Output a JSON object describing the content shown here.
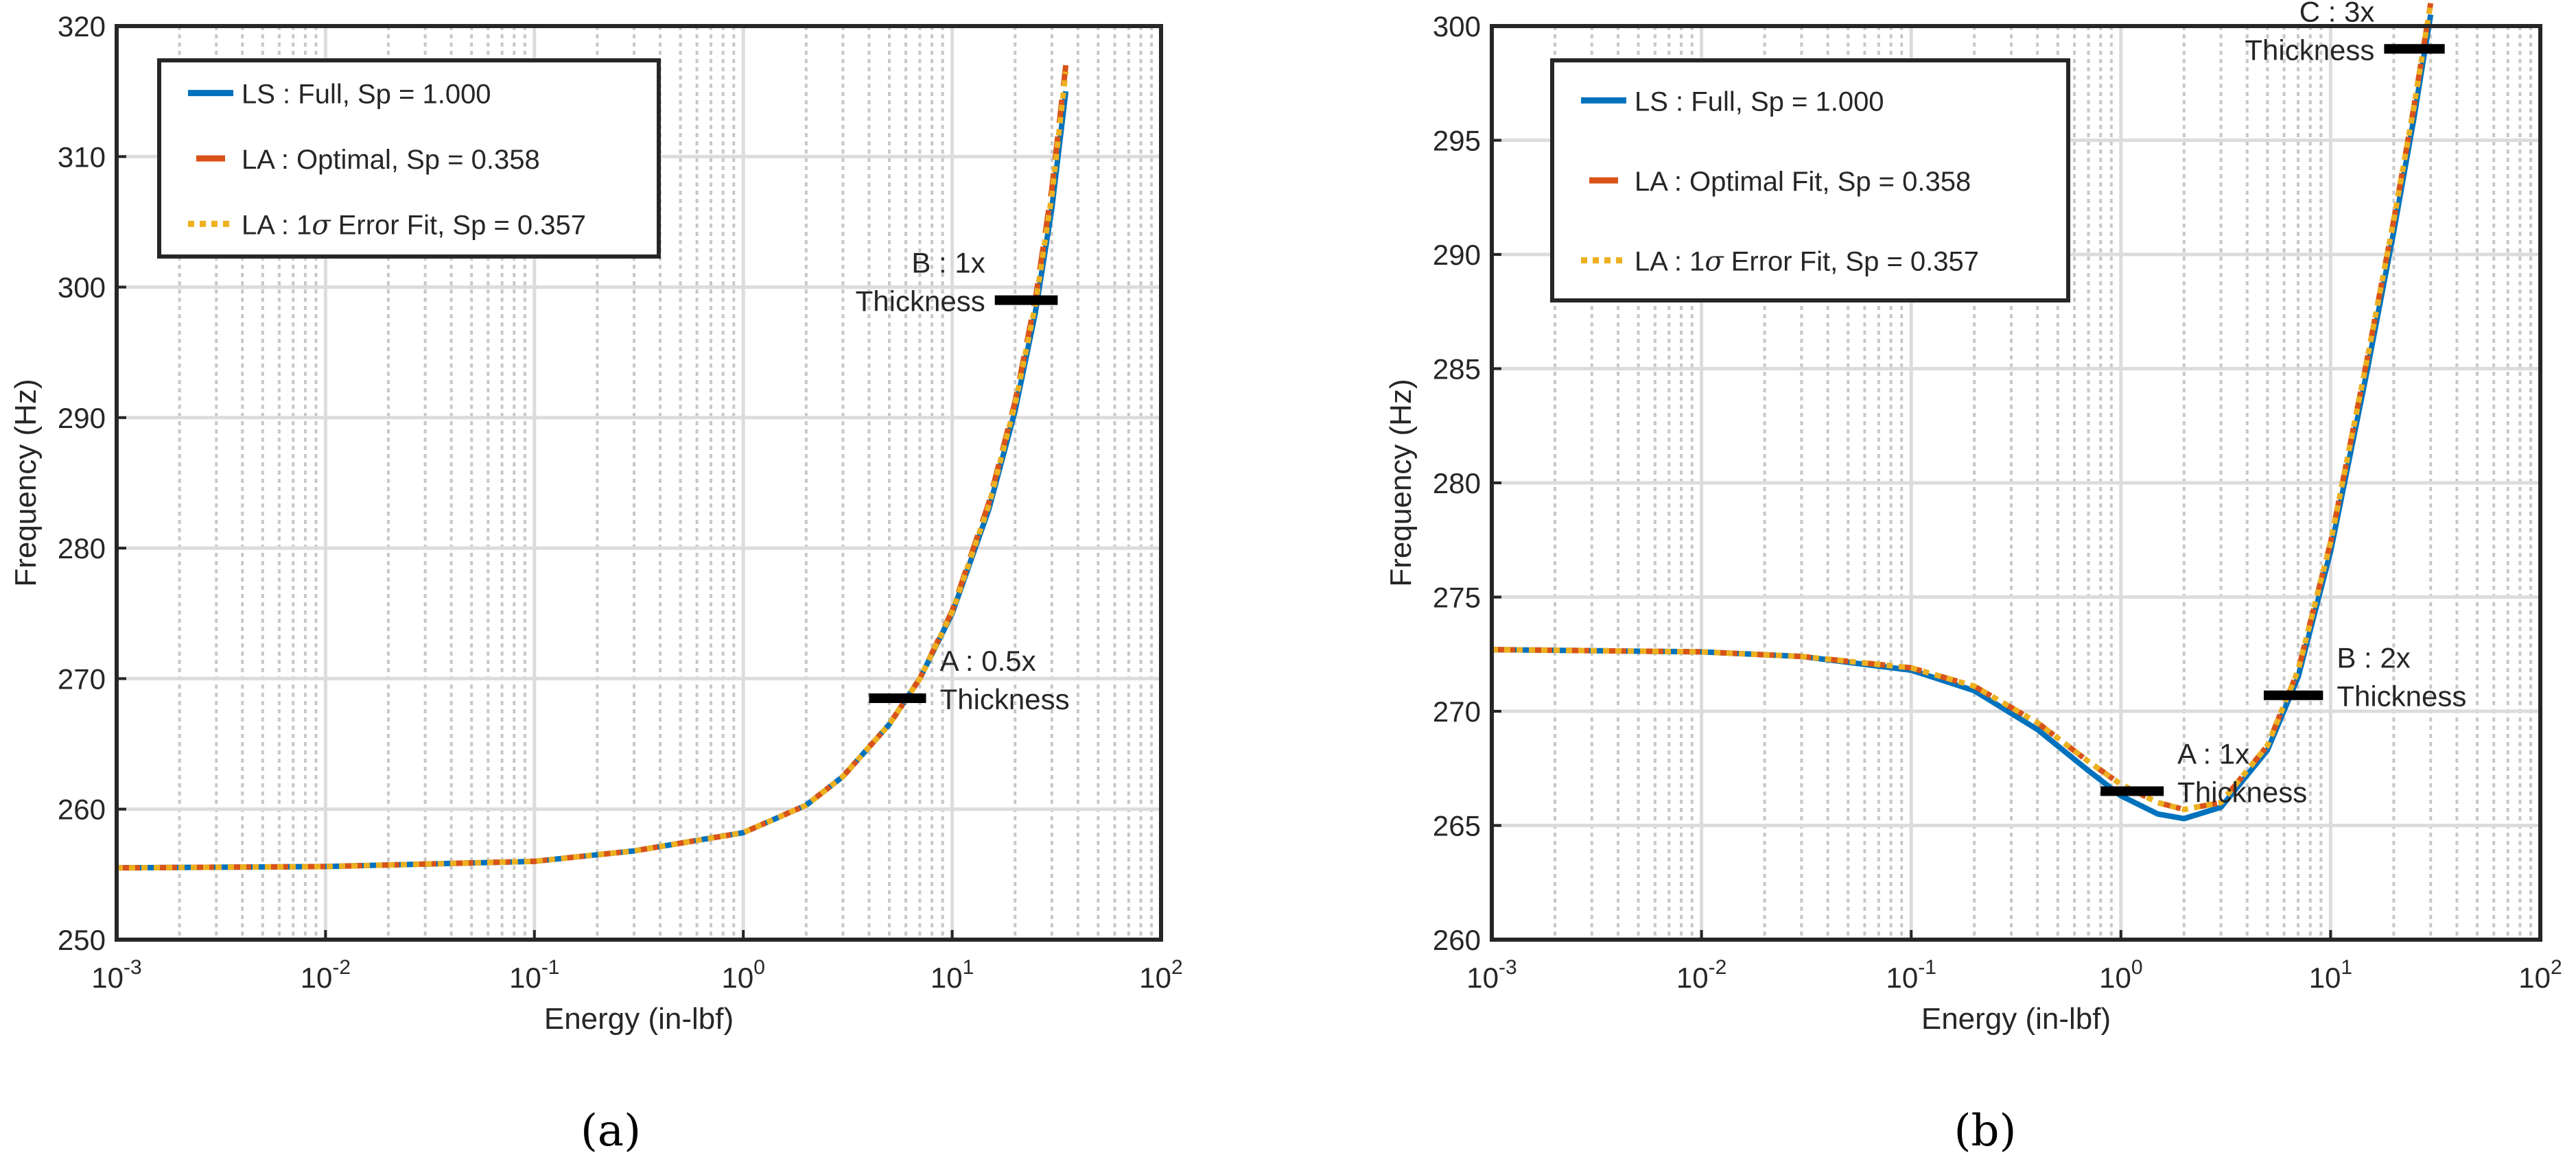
{
  "panels": [
    {
      "caption": "(a)",
      "chart_data": {
        "type": "line",
        "xscale": "log",
        "xlim": [
          0.001,
          100
        ],
        "ylim": [
          250,
          320
        ],
        "xlabel": "Energy (in-lbf)",
        "ylabel": "Frequency (Hz)",
        "grid": true,
        "legend_position": "top-left",
        "x_tick_labels": [
          "10-3",
          "10-2",
          "10-1",
          "100",
          "101",
          "102"
        ],
        "y_ticks": [
          250,
          260,
          270,
          280,
          290,
          300,
          310,
          320
        ],
        "series": [
          {
            "name": "LS : Full, Sp = 1.000",
            "color": "#0072BD",
            "style": "solid",
            "x": [
              0.001,
              0.01,
              0.1,
              0.3,
              1,
              2,
              3,
              5,
              7,
              10,
              15,
              20,
              25,
              30,
              35
            ],
            "y": [
              255.5,
              255.6,
              256.0,
              256.8,
              258.2,
              260.3,
              262.5,
              266.5,
              270.0,
              275.0,
              283.0,
              290.5,
              298.0,
              306.0,
              315.0
            ]
          },
          {
            "name": "LA : Optimal, Sp = 0.358",
            "color": "#D95319",
            "style": "dashed",
            "x": [
              0.001,
              0.01,
              0.1,
              0.3,
              1,
              2,
              3,
              5,
              7,
              10,
              15,
              20,
              25,
              30,
              35
            ],
            "y": [
              255.5,
              255.6,
              256.0,
              256.8,
              258.2,
              260.3,
              262.5,
              266.5,
              270.0,
              275.2,
              283.5,
              291.2,
              299.0,
              307.5,
              317.0
            ]
          },
          {
            "name": "LA : 1σ Error Fit, Sp = 0.357",
            "color": "#EDB120",
            "style": "dotted",
            "x": [
              0.001,
              0.01,
              0.1,
              0.3,
              1,
              2,
              3,
              5,
              7,
              10,
              15,
              20,
              25,
              30,
              35
            ],
            "y": [
              255.5,
              255.6,
              256.0,
              256.8,
              258.2,
              260.3,
              262.5,
              266.5,
              270.0,
              275.1,
              283.3,
              291.0,
              298.6,
              307.0,
              316.5
            ]
          }
        ],
        "annotations": [
          {
            "line1": "A : 0.5x",
            "line2": "Thickness",
            "x_from": 4,
            "x_to": 7.5,
            "y": 268.5
          },
          {
            "line1": "B : 1x",
            "line2": "Thickness",
            "x_from": 16,
            "x_to": 32,
            "y": 299.0
          }
        ]
      }
    },
    {
      "caption": "(b)",
      "chart_data": {
        "type": "line",
        "xscale": "log",
        "xlim": [
          0.001,
          100
        ],
        "ylim": [
          260,
          300
        ],
        "xlabel": "Energy (in-lbf)",
        "ylabel": "Frequency (Hz)",
        "grid": true,
        "legend_position": "top-left",
        "x_tick_labels": [
          "10-3",
          "10-2",
          "10-1",
          "100",
          "101",
          "102"
        ],
        "y_ticks": [
          260,
          265,
          270,
          275,
          280,
          285,
          290,
          295,
          300
        ],
        "series": [
          {
            "name": "LS : Full, Sp = 1.000",
            "color": "#0072BD",
            "style": "solid",
            "x": [
              0.001,
              0.01,
              0.03,
              0.1,
              0.2,
              0.4,
              0.7,
              1,
              1.5,
              2,
              3,
              5,
              7,
              10,
              15,
              20,
              25,
              30
            ],
            "y": [
              272.7,
              272.6,
              272.4,
              271.8,
              270.9,
              269.2,
              267.4,
              266.3,
              265.5,
              265.3,
              265.8,
              268.3,
              271.5,
              277.0,
              285.0,
              291.0,
              296.0,
              300.5
            ]
          },
          {
            "name": "LA : Optimal Fit,  Sp = 0.358",
            "color": "#D95319",
            "style": "dashed",
            "x": [
              0.001,
              0.01,
              0.03,
              0.1,
              0.2,
              0.4,
              0.7,
              1,
              1.5,
              2,
              3,
              5,
              7,
              10,
              15,
              20,
              25,
              30
            ],
            "y": [
              272.7,
              272.6,
              272.4,
              271.9,
              271.1,
              269.5,
              267.8,
              266.8,
              266.0,
              265.7,
              266.0,
              268.5,
              271.8,
              277.4,
              285.5,
              291.5,
              296.5,
              301.0
            ]
          },
          {
            "name": "LA : 1σ Error Fit, Sp = 0.357",
            "color": "#EDB120",
            "style": "dotted",
            "x": [
              0.001,
              0.01,
              0.03,
              0.1,
              0.2,
              0.4,
              0.7,
              1,
              1.5,
              2,
              3,
              5,
              7,
              10,
              15,
              20,
              25,
              30
            ],
            "y": [
              272.7,
              272.6,
              272.4,
              271.9,
              271.1,
              269.5,
              267.8,
              266.8,
              266.0,
              265.7,
              266.0,
              268.5,
              271.8,
              277.4,
              285.5,
              291.5,
              296.5,
              301.0
            ]
          }
        ],
        "annotations": [
          {
            "line1": "A : 1x",
            "line2": "Thickness",
            "x_from": 0.8,
            "x_to": 1.6,
            "y": 266.5
          },
          {
            "line1": "B : 2x",
            "line2": "Thickness",
            "x_from": 4.8,
            "x_to": 9.2,
            "y": 270.7
          },
          {
            "line1": "C : 3x",
            "line2": "Thickness",
            "x_from": 18,
            "x_to": 35,
            "y": 299.0
          }
        ]
      }
    }
  ]
}
